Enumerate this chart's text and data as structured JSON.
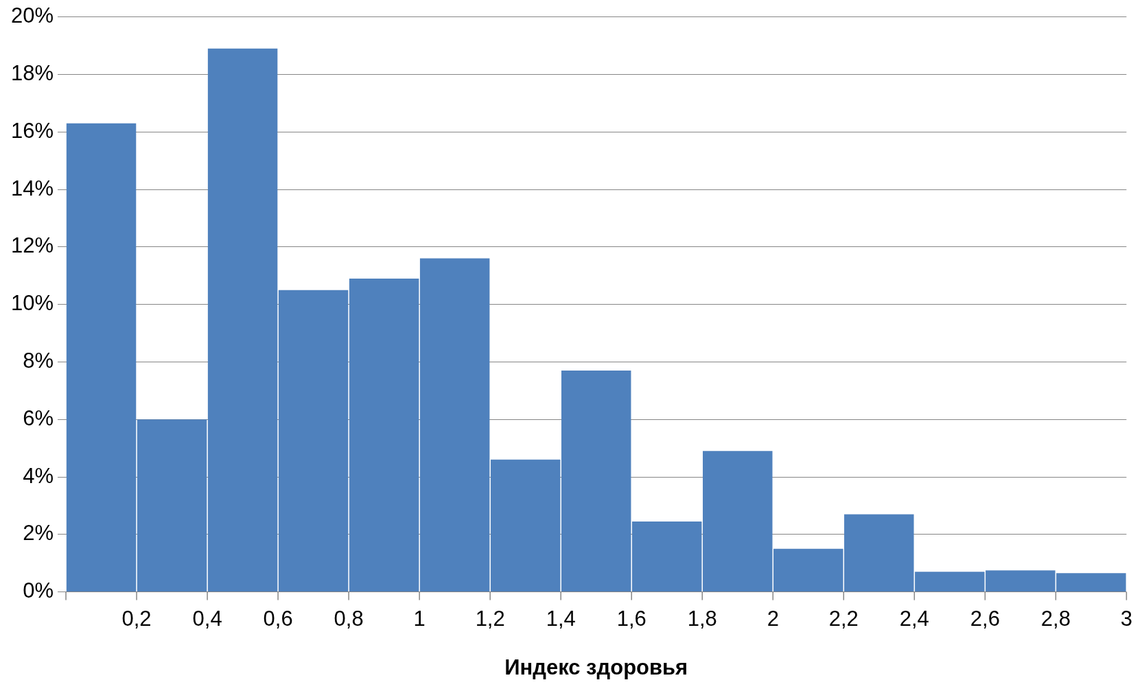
{
  "chart_data": {
    "type": "histogram",
    "xlabel": "Индекс здоровья",
    "bins": [
      0,
      0.2,
      0.4,
      0.6,
      0.8,
      1,
      1.2,
      1.4,
      1.6,
      1.8,
      2,
      2.2,
      2.4,
      2.6,
      2.8,
      3
    ],
    "values": [
      16.3,
      6.0,
      18.9,
      10.5,
      10.9,
      11.6,
      4.6,
      7.7,
      2.45,
      4.9,
      1.5,
      2.7,
      0.7,
      0.75,
      0.65
    ],
    "color": "#4f81bd",
    "xlim": [
      0,
      3
    ],
    "xticks": [
      {
        "value": 0,
        "label": null
      },
      {
        "value": 0.2,
        "label": "0,2"
      },
      {
        "value": 0.4,
        "label": "0,4"
      },
      {
        "value": 0.6,
        "label": "0,6"
      },
      {
        "value": 0.8,
        "label": "0,8"
      },
      {
        "value": 1,
        "label": "1"
      },
      {
        "value": 1.2,
        "label": "1,2"
      },
      {
        "value": 1.4,
        "label": "1,4"
      },
      {
        "value": 1.6,
        "label": "1,6"
      },
      {
        "value": 1.8,
        "label": "1,8"
      },
      {
        "value": 2,
        "label": "2"
      },
      {
        "value": 2.2,
        "label": "2,2"
      },
      {
        "value": 2.4,
        "label": "2,4"
      },
      {
        "value": 2.6,
        "label": "2,6"
      },
      {
        "value": 2.8,
        "label": "2,8"
      },
      {
        "value": 3,
        "label": "3"
      }
    ],
    "ylim": [
      0,
      20
    ],
    "yticks": [
      {
        "value": 0,
        "label": "0%"
      },
      {
        "value": 2,
        "label": "2%"
      },
      {
        "value": 4,
        "label": "4%"
      },
      {
        "value": 6,
        "label": "6%"
      },
      {
        "value": 8,
        "label": "8%"
      },
      {
        "value": 10,
        "label": "10%"
      },
      {
        "value": 12,
        "label": "12%"
      },
      {
        "value": 14,
        "label": "14%"
      },
      {
        "value": 16,
        "label": "16%"
      },
      {
        "value": 18,
        "label": "18%"
      },
      {
        "value": 20,
        "label": "20%"
      }
    ],
    "grid": "y"
  }
}
